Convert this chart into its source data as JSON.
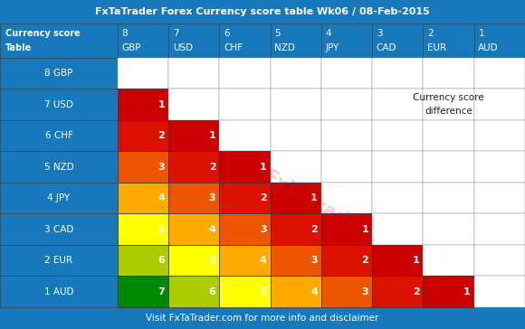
{
  "title": "FxTaTrader Forex Currency score table Wk06 / 08-Feb-2015",
  "footer": "Visit FxTaTrader.com for more info and disclaimer",
  "header_bg": "#1878bc",
  "row_labels": [
    "8 GBP",
    "7 USD",
    "6 CHF",
    "5 NZD",
    "4 JPY",
    "3 CAD",
    "2 EUR",
    "1 AUD"
  ],
  "col_headers_num": [
    "8",
    "7",
    "6",
    "5",
    "4",
    "3",
    "2",
    "1"
  ],
  "col_headers_cur": [
    "GBP",
    "USD",
    "CHF",
    "NZD",
    "JPY",
    "CAD",
    "EUR",
    "AUD"
  ],
  "corner_line1": "Currency score",
  "corner_line2": "Table",
  "score_diff_line1": "Currency score",
  "score_diff_line2": "difference",
  "color_map": {
    "1": "#cc0000",
    "2": "#dd1100",
    "3": "#ee5500",
    "4": "#ffaa00",
    "5": "#ffff00",
    "6": "#aacc00",
    "7": "#008800"
  },
  "table_data": [
    [
      null,
      null,
      null,
      null,
      null,
      null,
      null,
      null
    ],
    [
      1,
      null,
      null,
      null,
      null,
      null,
      null,
      null
    ],
    [
      2,
      1,
      null,
      null,
      null,
      null,
      null,
      null
    ],
    [
      3,
      2,
      1,
      null,
      null,
      null,
      null,
      null
    ],
    [
      4,
      3,
      2,
      1,
      null,
      null,
      null,
      null
    ],
    [
      5,
      4,
      3,
      2,
      1,
      null,
      null,
      null
    ],
    [
      6,
      5,
      4,
      3,
      2,
      1,
      null,
      null
    ],
    [
      7,
      6,
      5,
      4,
      3,
      2,
      1,
      null
    ]
  ],
  "fig_width": 5.8,
  "fig_height": 3.64,
  "dpi": 100
}
